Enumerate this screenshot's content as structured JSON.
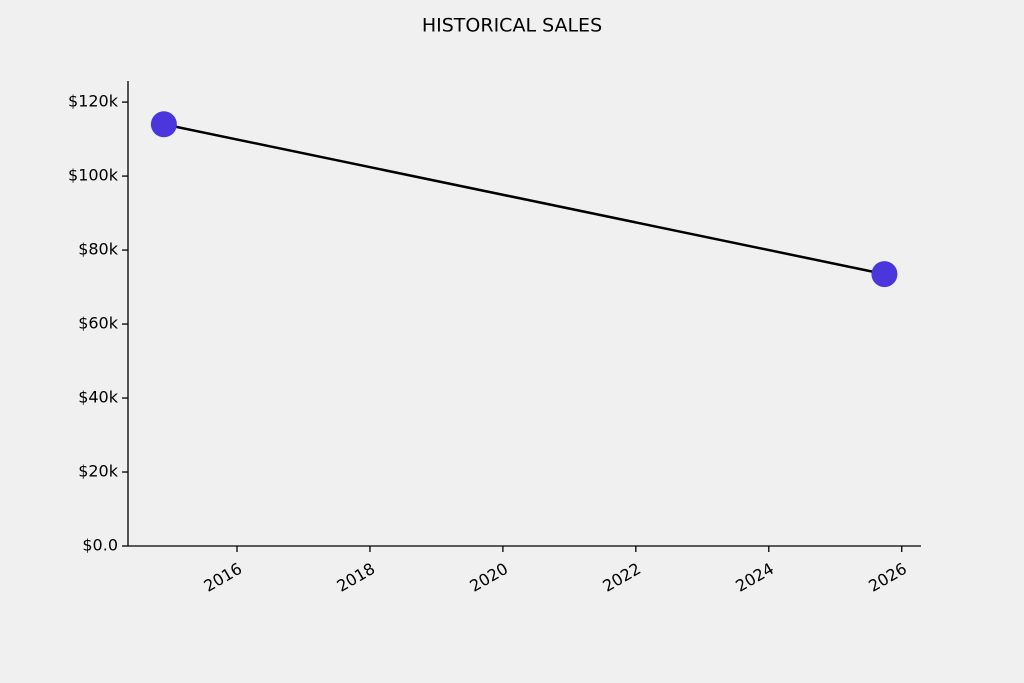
{
  "chart_data": {
    "type": "line",
    "title": "HISTORICAL SALES",
    "x": [
      2014.9,
      2025.74
    ],
    "values": [
      114000,
      73500
    ],
    "color": "#000000",
    "marker_color": "#4b35dd",
    "xlim": [
      2014.36,
      2026.29
    ],
    "xticks": [
      2016,
      2018,
      2020,
      2022,
      2024,
      2026
    ],
    "ylim": [
      0,
      125700
    ],
    "yticks": [
      {
        "value": 0,
        "label": "$0.0"
      },
      {
        "value": 20000,
        "label": "$20k"
      },
      {
        "value": 40000,
        "label": "$40k"
      },
      {
        "value": 60000,
        "label": "$60k"
      },
      {
        "value": 80000,
        "label": "$80k"
      },
      {
        "value": 100000,
        "label": "$100k"
      },
      {
        "value": 120000,
        "label": "$120k"
      }
    ],
    "grid": false
  }
}
